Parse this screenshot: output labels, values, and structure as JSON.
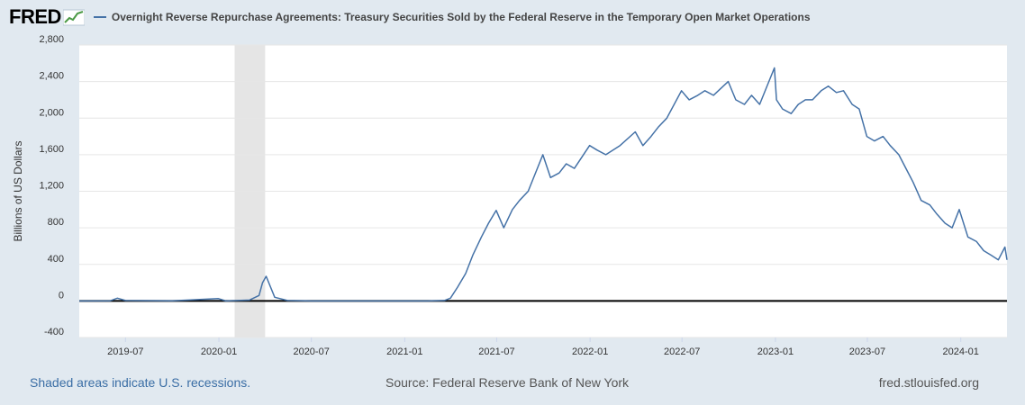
{
  "header": {
    "logo_text": "FRED",
    "title": "Overnight Reverse Repurchase Agreements: Treasury Securities Sold by the Federal Reserve in the Temporary Open Market Operations"
  },
  "footer": {
    "recession_note": "Shaded areas indicate U.S. recessions.",
    "source": "Source: Federal Reserve Bank of New York",
    "site": "fred.stlouisfed.org"
  },
  "colors": {
    "series": "#4572a7",
    "plot_bg": "#ffffff",
    "page_bg": "#e1e9f0",
    "recession": "#e5e5e5"
  },
  "chart_data": {
    "type": "line",
    "ylabel": "Billions of US Dollars",
    "ylim": [
      -400,
      2800
    ],
    "yticks": [
      -400,
      0,
      400,
      800,
      1200,
      1600,
      2000,
      2400,
      2800
    ],
    "ytick_labels": [
      "-400",
      "0",
      "400",
      "800",
      "1,200",
      "1,600",
      "2,000",
      "2,400",
      "2,800"
    ],
    "xlim": [
      "2019-04-01",
      "2024-04-01"
    ],
    "xticks": [
      "2019-07-01",
      "2020-01-01",
      "2020-07-01",
      "2021-01-01",
      "2021-07-01",
      "2022-01-01",
      "2022-07-01",
      "2023-01-01",
      "2023-07-01",
      "2024-01-01"
    ],
    "xtick_labels": [
      "2019-07",
      "2020-01",
      "2020-07",
      "2021-01",
      "2021-07",
      "2022-01",
      "2022-07",
      "2023-01",
      "2023-07",
      "2024-01"
    ],
    "grid": true,
    "recessions": [
      [
        "2020-02-01",
        "2020-04-01"
      ]
    ],
    "series": [
      {
        "x": [
          "2019-04-01",
          "2019-06-01",
          "2019-06-15",
          "2019-07-01",
          "2019-10-01",
          "2019-12-31",
          "2020-01-15",
          "2020-03-01",
          "2020-03-20",
          "2020-03-27",
          "2020-04-03",
          "2020-04-20",
          "2020-05-15",
          "2020-07-01",
          "2021-01-01",
          "2021-02-15",
          "2021-03-20",
          "2021-04-01",
          "2021-04-15",
          "2021-05-01",
          "2021-05-15",
          "2021-06-01",
          "2021-06-15",
          "2021-06-30",
          "2021-07-15",
          "2021-08-01",
          "2021-08-15",
          "2021-09-01",
          "2021-09-30",
          "2021-10-15",
          "2021-11-01",
          "2021-11-15",
          "2021-12-01",
          "2021-12-31",
          "2022-01-15",
          "2022-02-01",
          "2022-03-01",
          "2022-03-31",
          "2022-04-15",
          "2022-05-01",
          "2022-05-15",
          "2022-06-01",
          "2022-06-30",
          "2022-07-15",
          "2022-08-01",
          "2022-08-15",
          "2022-09-01",
          "2022-09-30",
          "2022-10-15",
          "2022-11-01",
          "2022-11-15",
          "2022-12-01",
          "2022-12-30",
          "2023-01-03",
          "2023-01-15",
          "2023-02-01",
          "2023-02-15",
          "2023-03-01",
          "2023-03-15",
          "2023-04-01",
          "2023-04-15",
          "2023-05-01",
          "2023-05-15",
          "2023-06-01",
          "2023-06-15",
          "2023-06-30",
          "2023-07-15",
          "2023-08-01",
          "2023-08-15",
          "2023-09-01",
          "2023-09-15",
          "2023-09-29",
          "2023-10-15",
          "2023-11-01",
          "2023-11-15",
          "2023-12-01",
          "2023-12-15",
          "2023-12-29",
          "2024-01-15",
          "2024-02-01",
          "2024-02-15",
          "2024-03-01",
          "2024-03-15",
          "2024-03-28",
          "2024-04-01"
        ],
        "y": [
          0,
          2,
          30,
          5,
          1,
          25,
          0,
          10,
          60,
          200,
          270,
          40,
          5,
          0,
          0,
          0,
          5,
          30,
          150,
          300,
          500,
          700,
          850,
          990,
          800,
          1000,
          1100,
          1200,
          1600,
          1350,
          1400,
          1500,
          1450,
          1700,
          1650,
          1600,
          1700,
          1850,
          1700,
          1800,
          1900,
          2000,
          2300,
          2200,
          2250,
          2300,
          2250,
          2400,
          2200,
          2150,
          2250,
          2150,
          2550,
          2200,
          2100,
          2050,
          2150,
          2200,
          2200,
          2300,
          2350,
          2280,
          2300,
          2150,
          2100,
          1800,
          1750,
          1800,
          1700,
          1600,
          1450,
          1300,
          1100,
          1050,
          950,
          850,
          800,
          1000,
          700,
          650,
          550,
          500,
          450,
          590,
          450
        ]
      }
    ]
  }
}
